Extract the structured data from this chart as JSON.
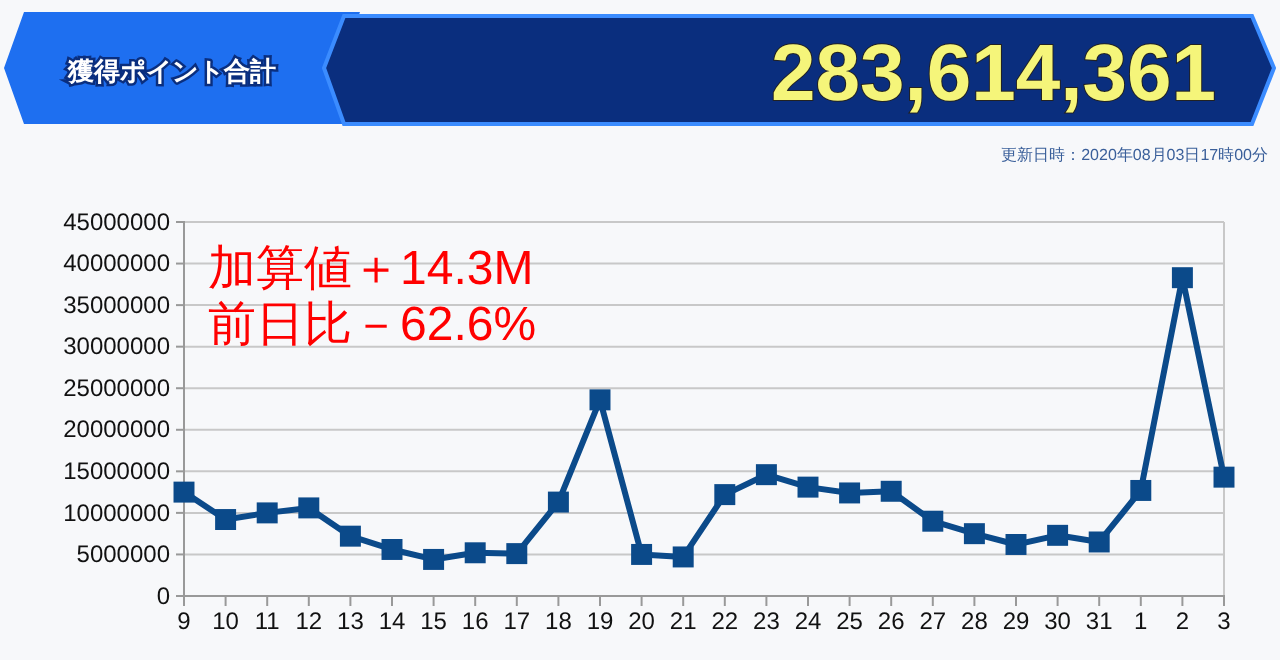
{
  "chart_data": {
    "type": "line",
    "title": "獲得ポイント合計",
    "subtitle": "283,614,361",
    "annotations": [
      "更新日時：2020年08月03日17時00分",
      "加算値＋14.3M",
      "前日比－62.6%"
    ],
    "categories": [
      "9",
      "10",
      "11",
      "12",
      "13",
      "14",
      "15",
      "16",
      "17",
      "18",
      "19",
      "20",
      "21",
      "22",
      "23",
      "24",
      "25",
      "26",
      "27",
      "28",
      "29",
      "30",
      "31",
      "1",
      "2",
      "3"
    ],
    "series": [
      {
        "color": "#0b4a8a",
        "values": [
          12500000.0,
          9200000.0,
          10000000.0,
          10600000.0,
          7200000.0,
          5600000.0,
          4400000.0,
          5200000.0,
          5100000.0,
          11300000.0,
          23600000.0,
          5000000.0,
          4700000.0,
          12200000.0,
          14600000.0,
          13100000.0,
          12400000.0,
          12600000.0,
          9000000.0,
          7500000.0,
          6200000.0,
          7300000.0,
          6500000.0,
          12700000.0,
          38300000.0,
          14300000.0
        ]
      }
    ],
    "ylim": [
      0,
      45000000
    ],
    "yticks": [
      0,
      5000000,
      10000000,
      15000000,
      20000000,
      25000000,
      30000000,
      35000000,
      40000000,
      45000000
    ],
    "grid": "y",
    "marker": "square",
    "line_style": "solid",
    "legend": false
  }
}
